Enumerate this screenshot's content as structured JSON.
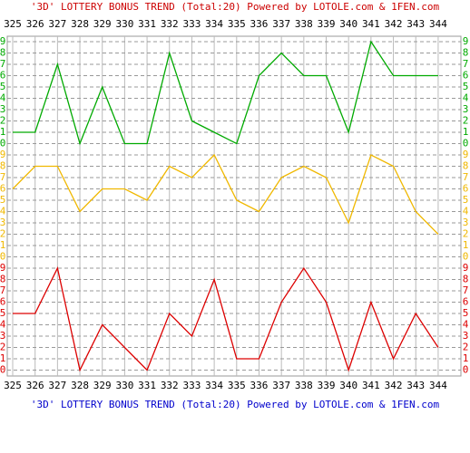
{
  "chart_data": {
    "type": "line",
    "title": "'3D' LOTTERY BONUS TREND (Total:20)  Powered by LOTOLE.com & 1FEN.com",
    "categories": [
      "325",
      "326",
      "327",
      "328",
      "329",
      "330",
      "331",
      "332",
      "333",
      "334",
      "335",
      "336",
      "337",
      "338",
      "339",
      "340",
      "341",
      "342",
      "343",
      "344"
    ],
    "series": [
      {
        "color": "#00aa00",
        "values": [
          1,
          1,
          7,
          0,
          5,
          0,
          0,
          8,
          2,
          1,
          0,
          6,
          8,
          6,
          6,
          1,
          9,
          6,
          6,
          6
        ]
      },
      {
        "color": "#f0b800",
        "values": [
          6,
          8,
          8,
          4,
          6,
          6,
          5,
          8,
          7,
          9,
          5,
          4,
          7,
          8,
          7,
          3,
          9,
          8,
          4,
          2
        ]
      },
      {
        "color": "#dd0000",
        "values": [
          5,
          5,
          9,
          0,
          4,
          2,
          0,
          5,
          3,
          8,
          1,
          1,
          6,
          9,
          6,
          0,
          6,
          1,
          5,
          2
        ]
      }
    ],
    "ylim": [
      0,
      9
    ],
    "yticks": [
      0,
      1,
      2,
      3,
      4,
      5,
      6,
      7,
      8,
      9
    ],
    "grid": true
  }
}
